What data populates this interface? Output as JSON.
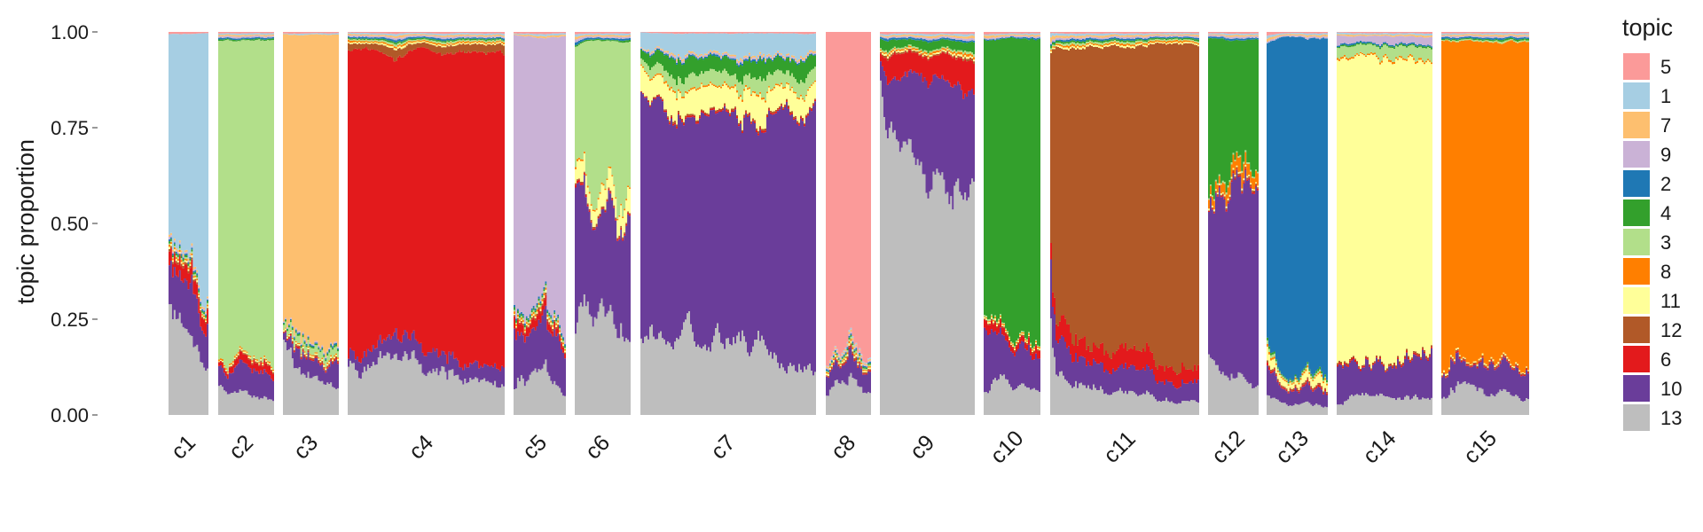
{
  "chart_data": {
    "type": "area",
    "subtype": "stacked-structure-plot",
    "title": "",
    "xlabel": "",
    "ylabel": "topic proportion",
    "ylim": [
      0,
      1
    ],
    "y_ticks": [
      "0.00",
      "0.25",
      "0.50",
      "0.75",
      "1.00"
    ],
    "grid": false,
    "legend": {
      "title": "topic",
      "placement": "right"
    },
    "topics": [
      {
        "name": "5",
        "color": "#fb9a99"
      },
      {
        "name": "1",
        "color": "#a6cee3"
      },
      {
        "name": "7",
        "color": "#fdbf6f"
      },
      {
        "name": "9",
        "color": "#cab2d6"
      },
      {
        "name": "2",
        "color": "#1f78b4"
      },
      {
        "name": "4",
        "color": "#33a02c"
      },
      {
        "name": "3",
        "color": "#b2df8a"
      },
      {
        "name": "8",
        "color": "#ff7f00"
      },
      {
        "name": "11",
        "color": "#ffff99"
      },
      {
        "name": "12",
        "color": "#b15928"
      },
      {
        "name": "6",
        "color": "#e31a1c"
      },
      {
        "name": "10",
        "color": "#6a3d9a"
      },
      {
        "name": "13",
        "color": "#bebebe"
      }
    ],
    "stack_order_bottom_to_top": [
      "13",
      "10",
      "6",
      "12",
      "11",
      "8",
      "3",
      "4",
      "2",
      "9",
      "7",
      "1",
      "5"
    ],
    "clusters": [
      {
        "label": "c1",
        "dominant": "1",
        "mean": {
          "13": 0.2,
          "10": 0.12,
          "6": 0.03,
          "1": 0.65
        }
      },
      {
        "label": "c2",
        "dominant": "3",
        "mean": {
          "13": 0.06,
          "10": 0.07,
          "6": 0.02,
          "3": 0.85
        }
      },
      {
        "label": "c3",
        "dominant": "7",
        "mean": {
          "13": 0.13,
          "10": 0.06,
          "3": 0.02,
          "7": 0.79
        }
      },
      {
        "label": "c4",
        "dominant": "6",
        "mean": {
          "13": 0.14,
          "10": 0.05,
          "12": 0.02,
          "6": 0.79
        }
      },
      {
        "label": "c5",
        "dominant": "9",
        "mean": {
          "13": 0.1,
          "10": 0.1,
          "6": 0.02,
          "9": 0.78
        }
      },
      {
        "label": "c6",
        "dominant": "3",
        "mean": {
          "13": 0.3,
          "10": 0.25,
          "11": 0.05,
          "3": 0.4
        }
      },
      {
        "label": "c7",
        "dominant": "10",
        "mean": {
          "13": 0.2,
          "10": 0.6,
          "11": 0.06,
          "4": 0.04,
          "3": 0.04,
          "1": 0.06
        }
      },
      {
        "label": "c8",
        "dominant": "5",
        "mean": {
          "13": 0.1,
          "10": 0.05,
          "5": 0.85
        }
      },
      {
        "label": "c9",
        "dominant": "13",
        "mean": {
          "13": 0.72,
          "10": 0.2,
          "6": 0.06,
          "4": 0.02
        }
      },
      {
        "label": "c10",
        "dominant": "4",
        "mean": {
          "13": 0.1,
          "10": 0.1,
          "6": 0.02,
          "4": 0.78
        }
      },
      {
        "label": "c11",
        "dominant": "12",
        "mean": {
          "13": 0.06,
          "10": 0.06,
          "6": 0.04,
          "12": 0.84
        }
      },
      {
        "label": "c12",
        "dominant": "10",
        "mean": {
          "13": 0.12,
          "10": 0.5,
          "8": 0.03,
          "4": 0.35
        }
      },
      {
        "label": "c13",
        "dominant": "2",
        "mean": {
          "13": 0.03,
          "10": 0.04,
          "11": 0.02,
          "2": 0.91
        }
      },
      {
        "label": "c14",
        "dominant": "11",
        "mean": {
          "13": 0.05,
          "10": 0.1,
          "11": 0.8,
          "3": 0.03,
          "9": 0.02
        }
      },
      {
        "label": "c15",
        "dominant": "8",
        "mean": {
          "13": 0.08,
          "10": 0.07,
          "8": 0.85
        }
      }
    ]
  }
}
